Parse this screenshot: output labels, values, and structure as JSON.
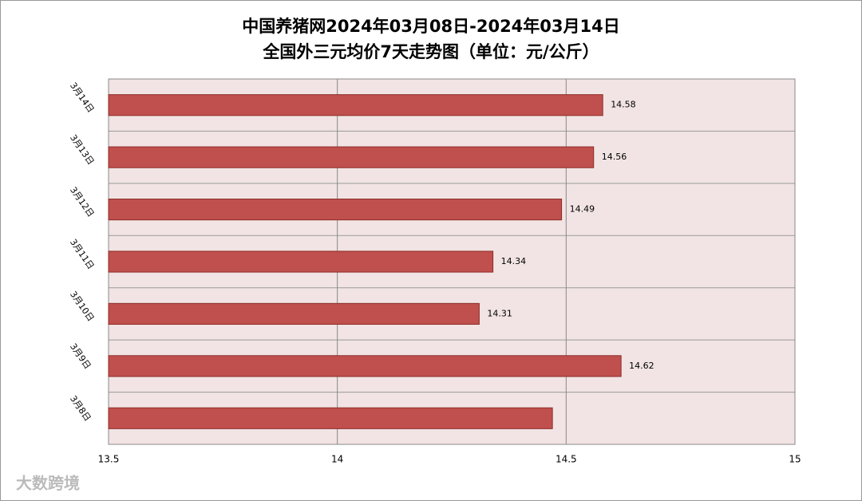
{
  "chart_data": {
    "type": "bar",
    "orientation": "horizontal",
    "title": "中国养猪网2024年03月08日-2024年03月14日",
    "subtitle": "全国外三元均价7天走势图（单位：元/公斤）",
    "categories": [
      "3月14日",
      "3月13日",
      "3月12日",
      "3月11日",
      "3月10日",
      "3月9日",
      "3月8日"
    ],
    "values": [
      14.58,
      14.56,
      14.49,
      14.34,
      14.31,
      14.62,
      14.47
    ],
    "value_labels": [
      "14.58",
      "14.56",
      "14.49",
      "14.34",
      "14.31",
      "14.62",
      null
    ],
    "color": "#c0504d",
    "xlim": [
      13.5,
      15
    ],
    "xticks": [
      13.5,
      14,
      14.5,
      15
    ],
    "grid": true,
    "watermark": "大数跨境"
  }
}
